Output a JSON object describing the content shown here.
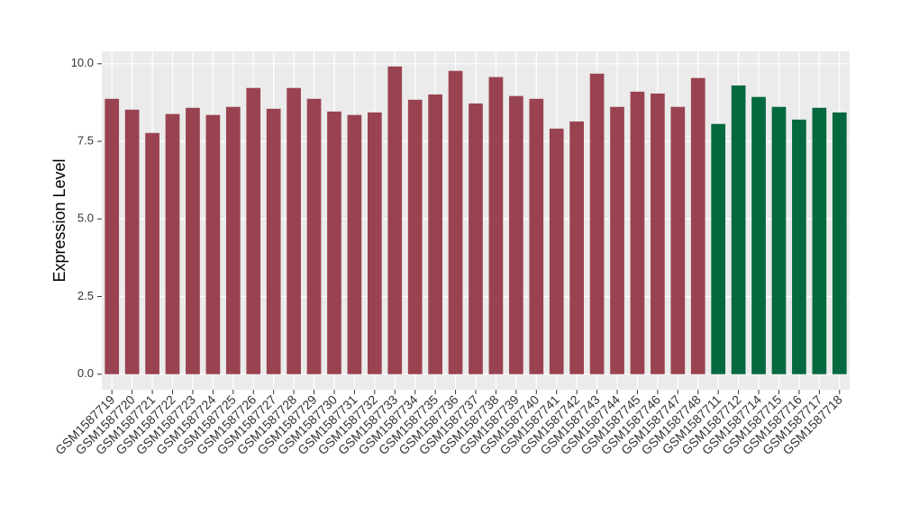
{
  "chart_data": {
    "type": "bar",
    "ylabel": "Expression Level",
    "categories": [
      "GSM1587719",
      "GSM1587720",
      "GSM1587721",
      "GSM1587722",
      "GSM1587723",
      "GSM1587724",
      "GSM1587725",
      "GSM1587726",
      "GSM1587727",
      "GSM1587728",
      "GSM1587729",
      "GSM1587730",
      "GSM1587731",
      "GSM1587732",
      "GSM1587733",
      "GSM1587734",
      "GSM1587735",
      "GSM1587736",
      "GSM1587737",
      "GSM1587738",
      "GSM1587739",
      "GSM1587740",
      "GSM1587741",
      "GSM1587742",
      "GSM1587743",
      "GSM1587744",
      "GSM1587745",
      "GSM1587746",
      "GSM1587747",
      "GSM1587748",
      "GSM1587711",
      "GSM1587712",
      "GSM1587714",
      "GSM1587715",
      "GSM1587716",
      "GSM1587717",
      "GSM1587718"
    ],
    "values": [
      8.87,
      8.52,
      7.77,
      8.38,
      8.58,
      8.35,
      8.61,
      9.22,
      8.55,
      9.22,
      8.87,
      8.46,
      8.35,
      8.43,
      9.91,
      8.84,
      9.01,
      9.77,
      8.72,
      9.57,
      8.96,
      8.87,
      7.91,
      8.14,
      9.68,
      8.61,
      9.1,
      9.04,
      8.61,
      9.54,
      8.06,
      9.3,
      8.93,
      8.61,
      8.2,
      8.58,
      8.43
    ],
    "colors": [
      "#9a4350",
      "#9a4350",
      "#9a4350",
      "#9a4350",
      "#9a4350",
      "#9a4350",
      "#9a4350",
      "#9a4350",
      "#9a4350",
      "#9a4350",
      "#9a4350",
      "#9a4350",
      "#9a4350",
      "#9a4350",
      "#9a4350",
      "#9a4350",
      "#9a4350",
      "#9a4350",
      "#9a4350",
      "#9a4350",
      "#9a4350",
      "#9a4350",
      "#9a4350",
      "#9a4350",
      "#9a4350",
      "#9a4350",
      "#9a4350",
      "#9a4350",
      "#9a4350",
      "#9a4350",
      "#04693f",
      "#04693f",
      "#04693f",
      "#04693f",
      "#04693f",
      "#04693f",
      "#04693f"
    ],
    "ylim": [
      -0.5,
      10.4
    ],
    "yticks": [
      {
        "value": 0,
        "label": "0.0"
      },
      {
        "value": 2.5,
        "label": "2.5"
      },
      {
        "value": 5,
        "label": "5.0"
      },
      {
        "value": 7.5,
        "label": "7.5"
      },
      {
        "value": 10,
        "label": "10.0"
      }
    ],
    "grid": true
  }
}
